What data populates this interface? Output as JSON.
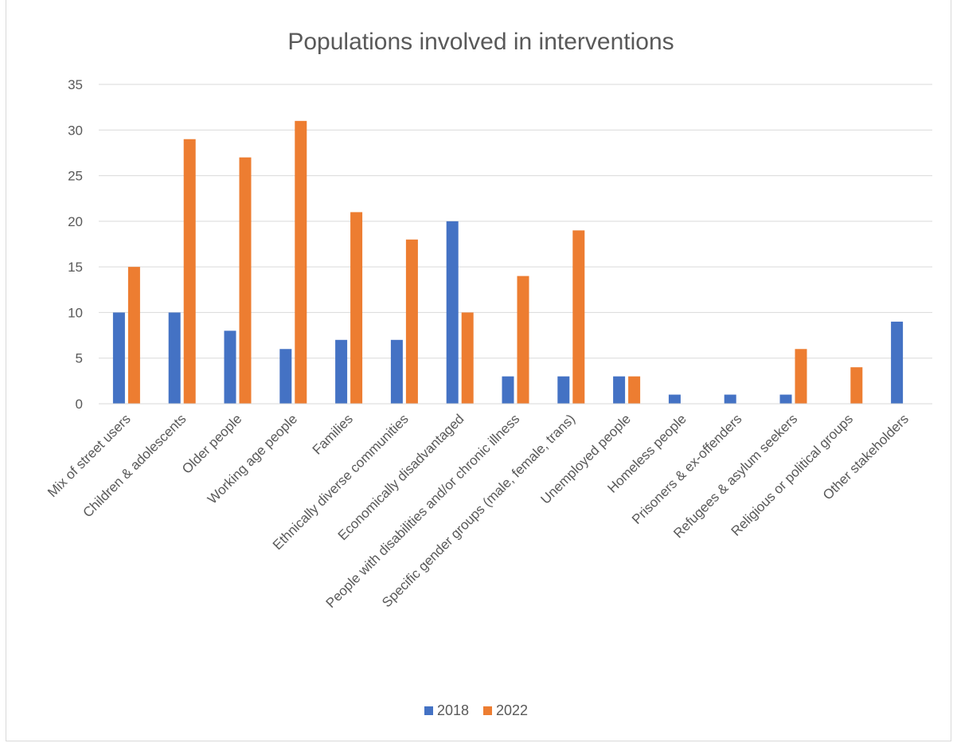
{
  "chart_data": {
    "type": "bar",
    "title": "Populations involved in interventions",
    "categories": [
      "Mix of street users",
      "Children & adolescents",
      "Older people",
      "Working age people",
      "Families",
      "Ethnically diverse communities",
      "Economically disadvantaged",
      "People with disabilities and/or chronic illness",
      "Specific gender groups (male, female, trans)",
      "Unemployed people",
      "Homeless people",
      "Prisoners & ex-offenders",
      "Refugees & asylum seekers",
      "Religious or political groups",
      "Other stakeholders"
    ],
    "series": [
      {
        "name": "2018",
        "color": "#4472C4",
        "values": [
          10,
          10,
          8,
          6,
          7,
          7,
          20,
          3,
          3,
          3,
          1,
          1,
          1,
          0,
          9
        ]
      },
      {
        "name": "2022",
        "color": "#ED7D31",
        "values": [
          15,
          29,
          27,
          31,
          21,
          18,
          10,
          14,
          19,
          3,
          0,
          0,
          6,
          4,
          0
        ]
      }
    ],
    "ylim": [
      0,
      35
    ],
    "yticks": [
      "0",
      "5",
      "10",
      "15",
      "20",
      "25",
      "30",
      "35"
    ],
    "ytick_values": [
      0,
      5,
      10,
      15,
      20,
      25,
      30,
      35
    ],
    "xlabel": "",
    "ylabel": "",
    "grid": true,
    "legend_position": "bottom"
  }
}
